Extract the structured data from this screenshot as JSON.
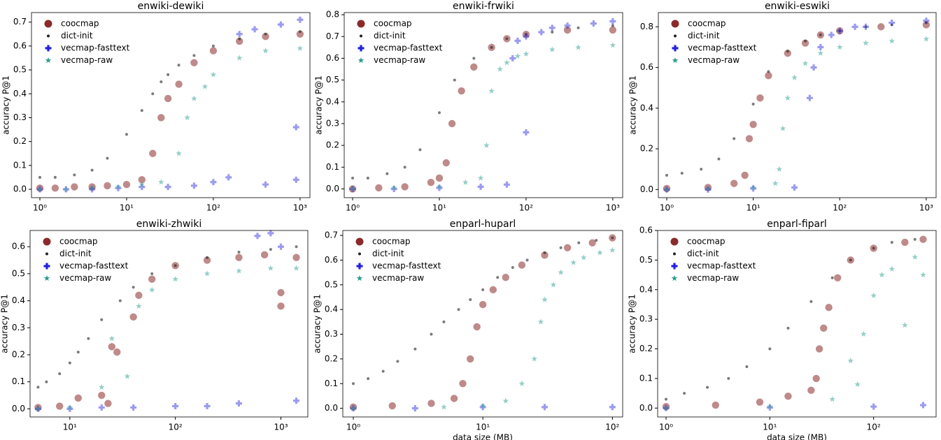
{
  "chart_data": [
    {
      "type": "scatter",
      "title": "enwiki-dewiki",
      "ylabel": "accuracy P@1",
      "xscale": "log",
      "legend": "upper left",
      "xlim": [
        0.8,
        1300
      ],
      "ylim": [
        -0.035,
        0.74
      ],
      "xticks": [
        {
          "value": 1,
          "label": "10⁰"
        },
        {
          "value": 10,
          "label": "10¹"
        },
        {
          "value": 100,
          "label": "10²"
        },
        {
          "value": 1000,
          "label": "10³"
        }
      ],
      "yticks": [
        {
          "value": 0,
          "label": "0.0"
        },
        0.1,
        0.2,
        0.3,
        0.4,
        0.5,
        0.6,
        0.7
      ],
      "series": [
        {
          "name": "coocmap",
          "color": "#8b2a2a",
          "marker": "circle",
          "x": [
            1,
            1.5,
            2.5,
            4,
            6,
            10,
            15,
            20,
            25,
            30,
            40,
            60,
            100,
            200,
            400,
            1000
          ],
          "values": [
            0.005,
            0.005,
            0.01,
            0.01,
            0.015,
            0.02,
            0.04,
            0.15,
            0.3,
            0.38,
            0.44,
            0.53,
            0.58,
            0.62,
            0.64,
            0.65
          ]
        },
        {
          "name": "dict-init",
          "color": "#222222",
          "marker": "dot",
          "x": [
            1,
            1.5,
            2.5,
            4,
            6,
            10,
            15,
            20,
            25,
            30,
            40,
            60,
            100,
            200,
            400,
            1000
          ],
          "values": [
            0.05,
            0.05,
            0.06,
            0.08,
            0.13,
            0.23,
            0.33,
            0.4,
            0.45,
            0.48,
            0.52,
            0.56,
            0.6,
            0.63,
            0.65,
            0.66
          ]
        },
        {
          "name": "vecmap-fasttext",
          "color": "#2222dd",
          "marker": "plus",
          "x": [
            1,
            2,
            4,
            8,
            15,
            30,
            60,
            100,
            150,
            200,
            300,
            400,
            600,
            900,
            900,
            1000
          ],
          "values": [
            0,
            0,
            0,
            0.005,
            0.01,
            0.01,
            0.015,
            0.03,
            0.05,
            0.65,
            0.67,
            0.02,
            0.69,
            0.26,
            0.04,
            0.71
          ]
        },
        {
          "name": "vecmap-raw",
          "color": "#2a9d8f",
          "marker": "star",
          "x": [
            1,
            2,
            4,
            8,
            15,
            25,
            40,
            50,
            60,
            80,
            100,
            200,
            400,
            1000
          ],
          "values": [
            0,
            0,
            0.005,
            0.01,
            0.02,
            0.03,
            0.15,
            0.3,
            0.38,
            0.43,
            0.48,
            0.55,
            0.58,
            0.59
          ]
        }
      ]
    },
    {
      "type": "scatter",
      "title": "enwiki-frwiki",
      "ylabel": "accuracy P@1",
      "xscale": "log",
      "legend": "upper left",
      "xlim": [
        0.8,
        1300
      ],
      "ylim": [
        -0.04,
        0.81
      ],
      "xticks": [
        {
          "value": 1,
          "label": "10⁰"
        },
        {
          "value": 10,
          "label": "10¹"
        },
        {
          "value": 100,
          "label": "10²"
        },
        {
          "value": 1000,
          "label": "10³"
        }
      ],
      "yticks": [
        {
          "value": 0,
          "label": "0.0"
        },
        0.1,
        0.2,
        0.3,
        0.4,
        0.5,
        0.6,
        0.7,
        0.8
      ],
      "series": [
        {
          "name": "coocmap",
          "color": "#8b2a2a",
          "marker": "circle",
          "x": [
            1,
            2,
            4,
            8,
            10,
            12,
            14,
            18,
            25,
            40,
            60,
            100,
            300,
            1000
          ],
          "values": [
            0,
            0.005,
            0.01,
            0.03,
            0.05,
            0.12,
            0.3,
            0.45,
            0.56,
            0.65,
            0.69,
            0.71,
            0.73,
            0.73
          ]
        },
        {
          "name": "dict-init",
          "color": "#222222",
          "marker": "dot",
          "x": [
            1,
            1.5,
            2.5,
            4,
            6,
            10,
            15,
            25,
            40,
            60,
            100,
            200,
            400,
            1000
          ],
          "values": [
            0.05,
            0.05,
            0.07,
            0.1,
            0.18,
            0.35,
            0.5,
            0.6,
            0.65,
            0.69,
            0.71,
            0.72,
            0.74,
            0.75
          ]
        },
        {
          "name": "vecmap-fasttext",
          "color": "#2222dd",
          "marker": "plus",
          "x": [
            1,
            3,
            10,
            30,
            60,
            70,
            80,
            100,
            150,
            200,
            300,
            600,
            1000,
            100
          ],
          "values": [
            0,
            0,
            0.005,
            0.01,
            0.02,
            0.6,
            0.68,
            0.7,
            0.72,
            0.74,
            0.75,
            0.76,
            0.77,
            0.26
          ]
        },
        {
          "name": "vecmap-raw",
          "color": "#2a9d8f",
          "marker": "star",
          "x": [
            1,
            3,
            10,
            20,
            30,
            35,
            40,
            50,
            60,
            80,
            100,
            200,
            400,
            1000
          ],
          "values": [
            0,
            0.005,
            0.01,
            0.03,
            0.05,
            0.2,
            0.45,
            0.55,
            0.58,
            0.61,
            0.62,
            0.64,
            0.65,
            0.66
          ]
        }
      ]
    },
    {
      "type": "scatter",
      "title": "enwiki-eswiki",
      "ylabel": "accuracy P@1",
      "xscale": "log",
      "legend": "upper left",
      "xlim": [
        0.8,
        1300
      ],
      "ylim": [
        -0.04,
        0.87
      ],
      "xticks": [
        {
          "value": 1,
          "label": "10⁰"
        },
        {
          "value": 10,
          "label": "10¹"
        },
        {
          "value": 100,
          "label": "10²"
        },
        {
          "value": 1000,
          "label": "10³"
        }
      ],
      "yticks": [
        {
          "value": 0,
          "label": "0.0"
        },
        0.2,
        0.4,
        0.6,
        0.8
      ],
      "series": [
        {
          "name": "coocmap",
          "color": "#8b2a2a",
          "marker": "circle",
          "x": [
            1,
            3,
            6,
            8,
            9,
            10,
            12,
            15,
            25,
            40,
            60,
            100,
            300,
            1000
          ],
          "values": [
            0.005,
            0.01,
            0.03,
            0.07,
            0.25,
            0.32,
            0.45,
            0.56,
            0.67,
            0.72,
            0.76,
            0.78,
            0.8,
            0.81
          ]
        },
        {
          "name": "dict-init",
          "color": "#222222",
          "marker": "dot",
          "x": [
            1,
            1.5,
            2.5,
            4,
            6,
            10,
            15,
            25,
            40,
            60,
            100,
            200,
            400,
            1000
          ],
          "values": [
            0.07,
            0.08,
            0.1,
            0.15,
            0.25,
            0.42,
            0.58,
            0.68,
            0.73,
            0.76,
            0.78,
            0.8,
            0.81,
            0.82
          ]
        },
        {
          "name": "vecmap-fasttext",
          "color": "#2222dd",
          "marker": "plus",
          "x": [
            1,
            3,
            10,
            30,
            45,
            50,
            60,
            80,
            100,
            150,
            200,
            400,
            1000
          ],
          "values": [
            0,
            0,
            0.005,
            0.01,
            0.45,
            0.6,
            0.7,
            0.76,
            0.78,
            0.8,
            0.8,
            0.82,
            0.83
          ]
        },
        {
          "name": "vecmap-raw",
          "color": "#2a9d8f",
          "marker": "star",
          "x": [
            1,
            3,
            10,
            18,
            20,
            22,
            25,
            30,
            40,
            60,
            100,
            200,
            400,
            1000
          ],
          "values": [
            0,
            0.005,
            0.01,
            0.03,
            0.1,
            0.3,
            0.45,
            0.55,
            0.62,
            0.67,
            0.7,
            0.72,
            0.73,
            0.74
          ]
        }
      ]
    },
    {
      "type": "scatter",
      "title": "enwiki-zhwiki",
      "ylabel": "accuracy P@1",
      "xscale": "log",
      "legend": "upper left",
      "xlim": [
        4.2,
        1800
      ],
      "ylim": [
        -0.03,
        0.66
      ],
      "xticks": [
        {
          "value": 10,
          "label": "10¹"
        },
        {
          "value": 100,
          "label": "10²"
        },
        {
          "value": 1000,
          "label": "10³"
        }
      ],
      "yticks": [
        {
          "value": 0,
          "label": "0.0"
        },
        0.1,
        0.2,
        0.3,
        0.4,
        0.5,
        0.6
      ],
      "series": [
        {
          "name": "coocmap",
          "color": "#8b2a2a",
          "marker": "circle",
          "x": [
            5,
            8,
            12,
            20,
            23,
            25,
            28,
            40,
            45,
            60,
            100,
            200,
            400,
            700,
            1000,
            1000,
            1400
          ],
          "values": [
            0.005,
            0.01,
            0.04,
            0.05,
            0.02,
            0.23,
            0.21,
            0.34,
            0.42,
            0.48,
            0.53,
            0.55,
            0.56,
            0.57,
            0.43,
            0.38,
            0.56
          ]
        },
        {
          "name": "dict-init",
          "color": "#222222",
          "marker": "dot",
          "x": [
            5,
            6,
            8,
            10,
            12,
            15,
            20,
            30,
            40,
            60,
            100,
            200,
            400,
            800,
            1400
          ],
          "values": [
            0.08,
            0.1,
            0.13,
            0.17,
            0.21,
            0.26,
            0.33,
            0.4,
            0.45,
            0.5,
            0.53,
            0.56,
            0.58,
            0.59,
            0.6
          ]
        },
        {
          "name": "vecmap-fasttext",
          "color": "#2222dd",
          "marker": "plus",
          "x": [
            5,
            10,
            20,
            40,
            100,
            200,
            400,
            600,
            800,
            1000,
            1400
          ],
          "values": [
            0,
            0,
            0.005,
            0.005,
            0.01,
            0.01,
            0.02,
            0.64,
            0.65,
            0.6,
            0.03
          ]
        },
        {
          "name": "vecmap-raw",
          "color": "#2a9d8f",
          "marker": "star",
          "x": [
            5,
            10,
            20,
            25,
            35,
            45,
            60,
            100,
            200,
            400,
            800,
            1400
          ],
          "values": [
            0,
            0.005,
            0.08,
            0.26,
            0.12,
            0.38,
            0.44,
            0.48,
            0.5,
            0.51,
            0.52,
            0.52
          ]
        }
      ]
    },
    {
      "type": "scatter",
      "title": "enparl-huparl",
      "ylabel": "accuracy P@1",
      "xlabel": "data size (MB)",
      "xscale": "log",
      "legend": "upper left",
      "xlim": [
        0.83,
        120
      ],
      "ylim": [
        -0.035,
        0.72
      ],
      "xticks": [
        {
          "value": 1,
          "label": "10⁰"
        },
        {
          "value": 10,
          "label": "10¹"
        },
        {
          "value": 100,
          "label": "10²"
        }
      ],
      "yticks": [
        {
          "value": 0,
          "label": "0.0"
        },
        0.1,
        0.2,
        0.3,
        0.4,
        0.5,
        0.6,
        0.7
      ],
      "series": [
        {
          "name": "coocmap",
          "color": "#8b2a2a",
          "marker": "circle",
          "x": [
            1,
            2,
            4,
            6,
            7,
            8,
            9,
            10,
            12,
            15,
            20,
            30,
            45,
            70,
            100
          ],
          "values": [
            0.005,
            0.01,
            0.02,
            0.04,
            0.1,
            0.2,
            0.33,
            0.42,
            0.48,
            0.53,
            0.58,
            0.62,
            0.65,
            0.67,
            0.69
          ]
        },
        {
          "name": "dict-init",
          "color": "#222222",
          "marker": "dot",
          "x": [
            1,
            1.3,
            1.7,
            2.2,
            3,
            4,
            5,
            6.5,
            8,
            10,
            13,
            17,
            22,
            30,
            40,
            55,
            75,
            100
          ],
          "values": [
            0.1,
            0.12,
            0.15,
            0.19,
            0.24,
            0.3,
            0.35,
            0.4,
            0.44,
            0.48,
            0.53,
            0.57,
            0.6,
            0.63,
            0.65,
            0.67,
            0.68,
            0.69
          ]
        },
        {
          "name": "vecmap-fasttext",
          "color": "#2222dd",
          "marker": "plus",
          "x": [
            1,
            3,
            10,
            30,
            100
          ],
          "values": [
            0,
            0,
            0.005,
            0.005,
            0.005
          ]
        },
        {
          "name": "vecmap-raw",
          "color": "#2a9d8f",
          "marker": "star",
          "x": [
            1,
            5,
            10,
            15,
            20,
            25,
            28,
            30,
            35,
            40,
            50,
            60,
            80,
            100
          ],
          "values": [
            0,
            0.005,
            0.01,
            0.03,
            0.1,
            0.2,
            0.35,
            0.44,
            0.5,
            0.55,
            0.59,
            0.61,
            0.63,
            0.64
          ]
        }
      ]
    },
    {
      "type": "scatter",
      "title": "enparl-fiparl",
      "ylabel": "accuracy P@1",
      "xlabel": "data size (MB)",
      "xscale": "log",
      "legend": "upper left",
      "xlim": [
        0.83,
        400
      ],
      "ylim": [
        -0.03,
        0.6
      ],
      "xticks": [
        {
          "value": 1,
          "label": "10⁰"
        },
        {
          "value": 10,
          "label": "10¹"
        },
        {
          "value": 100,
          "label": "10²"
        }
      ],
      "yticks": [
        {
          "value": 0,
          "label": "0.0"
        },
        0.1,
        0.2,
        0.3,
        0.4,
        0.5,
        0.6
      ],
      "series": [
        {
          "name": "coocmap",
          "color": "#8b2a2a",
          "marker": "circle",
          "x": [
            1,
            3,
            8,
            15,
            25,
            28,
            30,
            33,
            37,
            45,
            60,
            100,
            200,
            300
          ],
          "values": [
            0.005,
            0.01,
            0.02,
            0.04,
            0.06,
            0.1,
            0.2,
            0.27,
            0.34,
            0.44,
            0.5,
            0.54,
            0.56,
            0.57
          ]
        },
        {
          "name": "dict-init",
          "color": "#222222",
          "marker": "dot",
          "x": [
            1,
            1.5,
            2.5,
            4,
            6,
            10,
            15,
            25,
            40,
            60,
            100,
            150,
            250
          ],
          "values": [
            0.03,
            0.05,
            0.07,
            0.1,
            0.14,
            0.2,
            0.27,
            0.36,
            0.44,
            0.5,
            0.54,
            0.56,
            0.57
          ]
        },
        {
          "name": "vecmap-fasttext",
          "color": "#2222dd",
          "marker": "plus",
          "x": [
            1,
            10,
            100,
            300
          ],
          "values": [
            0,
            0.002,
            0.005,
            0.01
          ]
        },
        {
          "name": "vecmap-raw",
          "color": "#2a9d8f",
          "marker": "star",
          "x": [
            1,
            10,
            40,
            60,
            70,
            80,
            100,
            120,
            150,
            200,
            250,
            300
          ],
          "values": [
            0,
            0.005,
            0.03,
            0.16,
            0.08,
            0.25,
            0.38,
            0.45,
            0.47,
            0.28,
            0.51,
            0.45
          ]
        }
      ]
    }
  ]
}
